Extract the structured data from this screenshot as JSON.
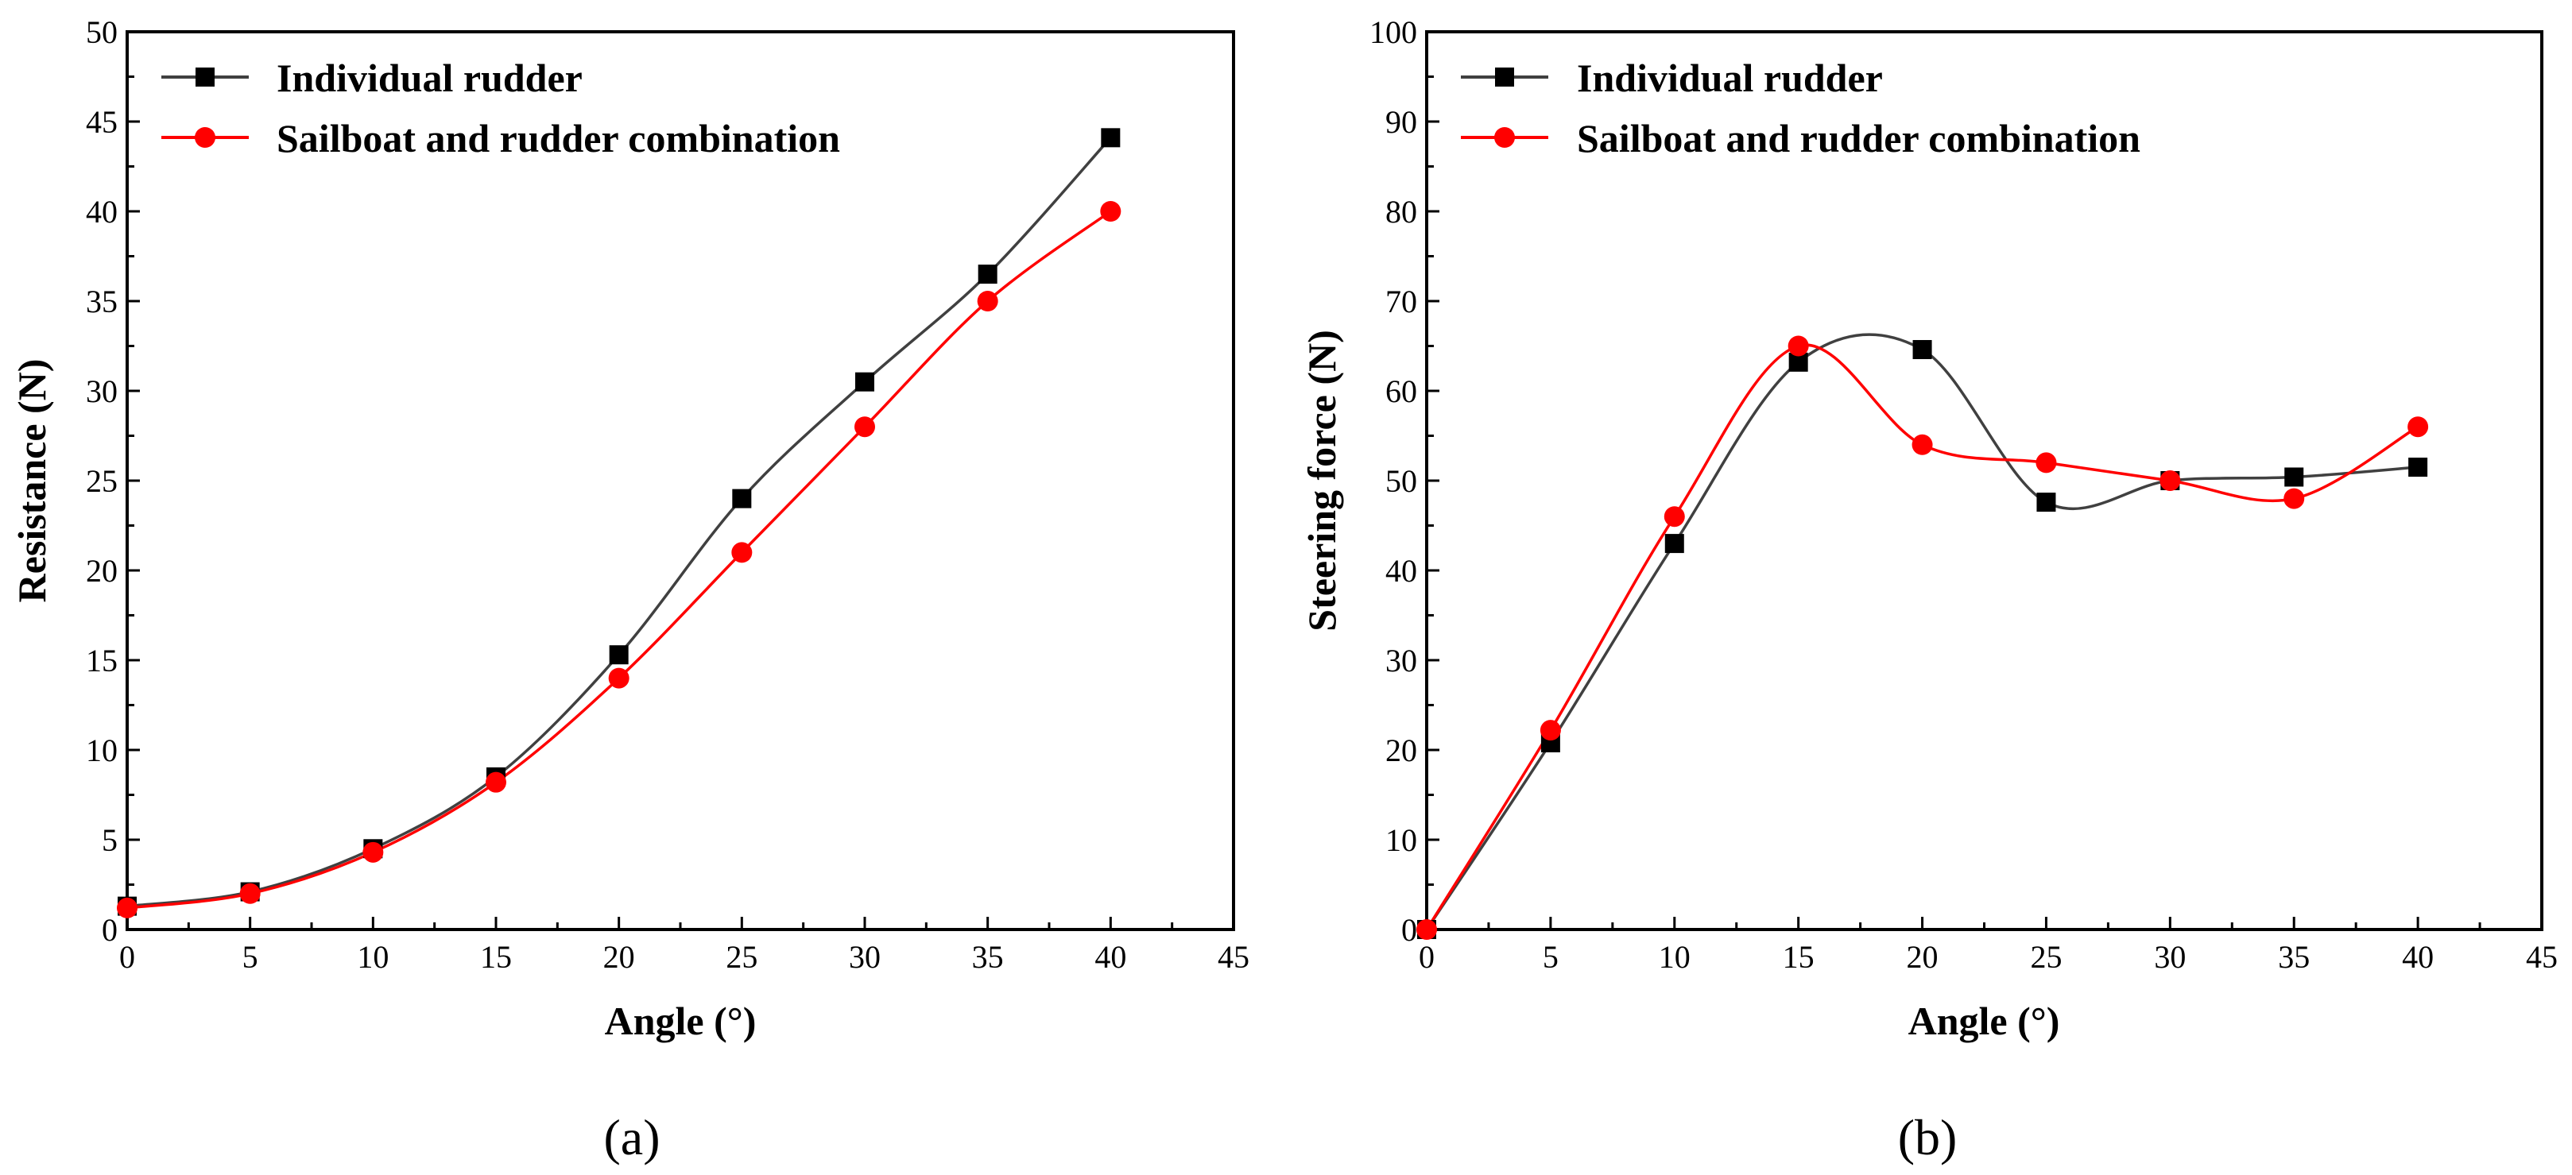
{
  "chart_data": [
    {
      "type": "line",
      "panel_label": "(a)",
      "xlabel": "Angle (°)",
      "ylabel": "Resistance (N)",
      "xlim": [
        0,
        45
      ],
      "ylim": [
        0,
        50
      ],
      "xticks": [
        0,
        5,
        10,
        15,
        20,
        25,
        30,
        35,
        40,
        45
      ],
      "yticks": [
        0,
        5,
        10,
        15,
        20,
        25,
        30,
        35,
        40,
        45,
        50
      ],
      "legend_position": "top-left",
      "series": [
        {
          "name": "Individual rudder",
          "color": "#000000",
          "marker": "square",
          "line_color": "#404040",
          "x": [
            0,
            5,
            10,
            15,
            20,
            25,
            30,
            35,
            40
          ],
          "y": [
            1.3,
            2.1,
            4.5,
            8.5,
            15.3,
            24.0,
            30.5,
            36.5,
            44.1
          ]
        },
        {
          "name": "Sailboat and rudder combination",
          "color": "#ff0000",
          "marker": "circle",
          "line_color": "#ff0000",
          "x": [
            0,
            5,
            10,
            15,
            20,
            25,
            30,
            35,
            40
          ],
          "y": [
            1.2,
            2.0,
            4.3,
            8.2,
            14.0,
            21.0,
            28.0,
            35.0,
            40.0
          ]
        }
      ]
    },
    {
      "type": "line",
      "panel_label": "(b)",
      "xlabel": "Angle (°)",
      "ylabel": "Steering force (N)",
      "xlim": [
        0,
        45
      ],
      "ylim": [
        0,
        100
      ],
      "xticks": [
        0,
        5,
        10,
        15,
        20,
        25,
        30,
        35,
        40,
        45
      ],
      "yticks": [
        0,
        10,
        20,
        30,
        40,
        50,
        60,
        70,
        80,
        90,
        100
      ],
      "legend_position": "top-left",
      "series": [
        {
          "name": "Individual rudder",
          "color": "#000000",
          "marker": "square",
          "line_color": "#404040",
          "x": [
            0,
            5,
            10,
            15,
            20,
            25,
            30,
            35,
            40
          ],
          "y": [
            0,
            20.8,
            43.0,
            63.2,
            64.6,
            47.6,
            50.0,
            50.4,
            51.5
          ]
        },
        {
          "name": "Sailboat and rudder combination",
          "color": "#ff0000",
          "marker": "circle",
          "line_color": "#ff0000",
          "x": [
            0,
            5,
            10,
            15,
            20,
            25,
            30,
            35,
            40
          ],
          "y": [
            0,
            22.2,
            46.0,
            65.0,
            54.0,
            52.0,
            50.0,
            48.0,
            56.0
          ]
        }
      ]
    }
  ]
}
